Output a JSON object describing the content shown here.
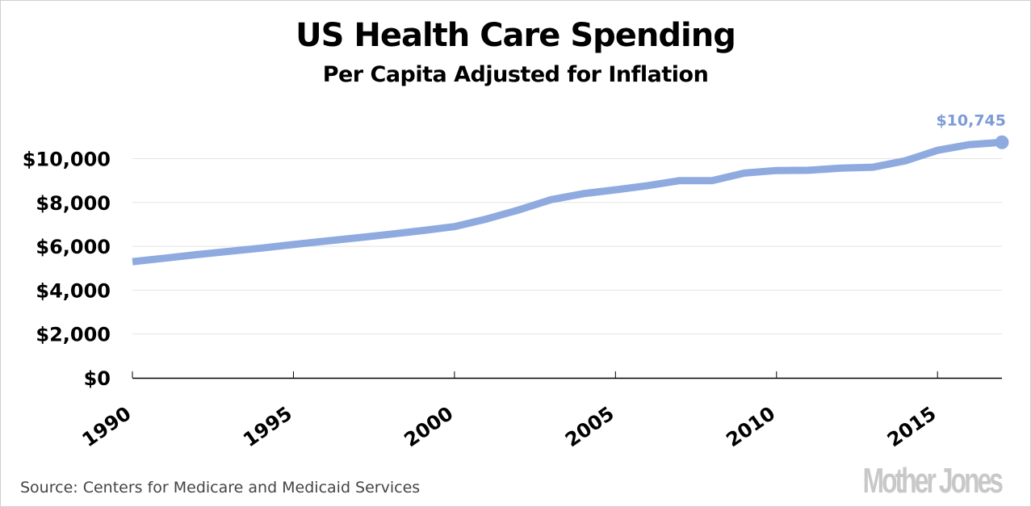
{
  "header": {
    "title": "US Health Care Spending",
    "subtitle": "Per Capita Adjusted for Inflation"
  },
  "footer": {
    "source": "Source: Centers for Medicare and Medicaid Services",
    "logo": "Mother Jones"
  },
  "colors": {
    "line": "#8eaadf",
    "end_label": "#7d9bd6",
    "grid": "#e3e3e3",
    "axis": "#000000"
  },
  "chart_data": {
    "type": "line",
    "title": "US Health Care Spending",
    "subtitle": "Per Capita Adjusted for Inflation",
    "xlabel": "",
    "ylabel": "",
    "x": [
      1990,
      1991,
      1992,
      1993,
      1994,
      1995,
      1996,
      1997,
      1998,
      1999,
      2000,
      2001,
      2002,
      2003,
      2004,
      2005,
      2006,
      2007,
      2008,
      2009,
      2010,
      2011,
      2012,
      2013,
      2014,
      2015,
      2016,
      2017
    ],
    "series": [
      {
        "name": "Per capita spending (inflation-adjusted $)",
        "values": [
          5300,
          5460,
          5620,
          5770,
          5920,
          6080,
          6240,
          6390,
          6550,
          6720,
          6900,
          7250,
          7660,
          8130,
          8400,
          8580,
          8770,
          9000,
          9000,
          9340,
          9460,
          9470,
          9570,
          9610,
          9900,
          10380,
          10640,
          10745
        ]
      }
    ],
    "end_label": "$10,745",
    "xlim": [
      1990,
      2017
    ],
    "ylim": [
      0,
      10745
    ],
    "xticks": [
      1990,
      1995,
      2000,
      2005,
      2010,
      2015
    ],
    "xtick_labels": [
      "1990",
      "1995",
      "2000",
      "2005",
      "2010",
      "2015"
    ],
    "yticks": [
      0,
      2000,
      4000,
      6000,
      8000,
      10000
    ],
    "ytick_labels": [
      "$0",
      "$2,000",
      "$4,000",
      "$6,000",
      "$8,000",
      "$10,000"
    ],
    "grid": true,
    "legend": "none"
  }
}
